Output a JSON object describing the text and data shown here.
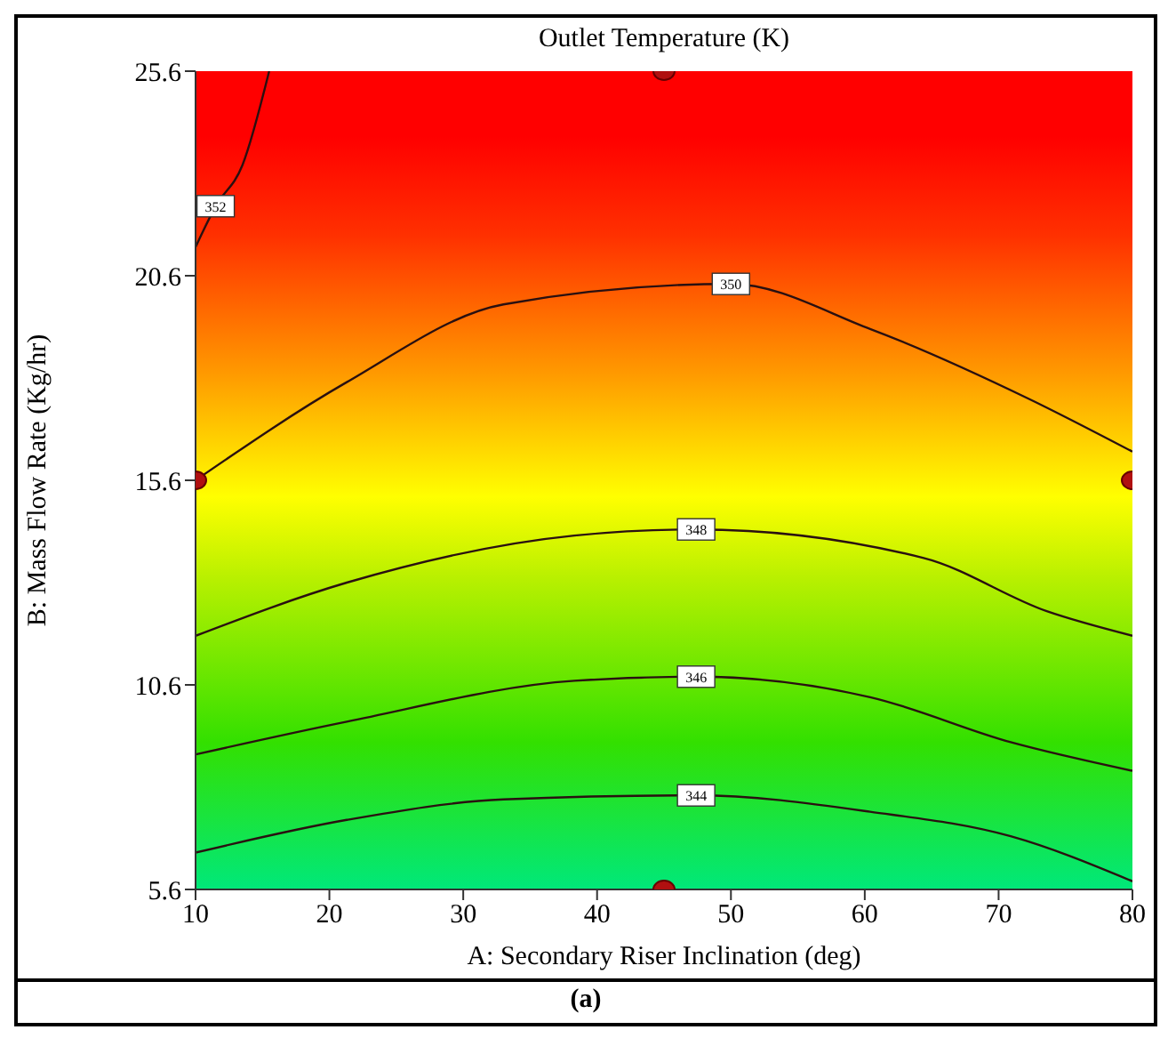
{
  "chart_data": {
    "type": "line",
    "title": "Outlet Temperature (K)",
    "xlabel": "A: Secondary Riser Inclination (deg)",
    "ylabel": "B: Mass Flow Rate (Kg/hr)",
    "xlim": [
      10,
      80
    ],
    "xticks": [
      10,
      20,
      30,
      40,
      50,
      60,
      70,
      80
    ],
    "ylim": [
      5.6,
      25.6
    ],
    "yticks": [
      5.6,
      10.6,
      15.6,
      20.6,
      25.6
    ],
    "marker": "none",
    "line_style": "solid",
    "annotations": [
      "(a)"
    ],
    "series": [
      {
        "name": "352",
        "color": "#2a1010",
        "x": [
          10,
          11.5,
          13.5,
          15.5
        ],
        "values": [
          21.3,
          22.3,
          23.3,
          25.6
        ]
      },
      {
        "name": "350",
        "color": "#2a1010",
        "x": [
          10,
          21.3,
          33,
          50,
          60.4,
          72.2,
          80
        ],
        "values": [
          15.6,
          18.0,
          19.9,
          20.4,
          19.3,
          17.6,
          16.3
        ]
      },
      {
        "name": "348",
        "color": "#2a1010",
        "x": [
          10,
          21.3,
          38.3,
          47.4,
          64.4,
          73.6,
          80
        ],
        "values": [
          11.8,
          13.1,
          14.25,
          14.4,
          13.7,
          12.4,
          11.8
        ]
      },
      {
        "name": "346",
        "color": "#2a1010",
        "x": [
          10,
          21.3,
          38.3,
          47.4,
          60.4,
          70.9,
          80
        ],
        "values": [
          8.9,
          9.7,
          10.7,
          10.8,
          10.3,
          9.2,
          8.5
        ]
      },
      {
        "name": "344",
        "color": "#2a1010",
        "x": [
          10,
          21.3,
          33,
          47.4,
          60.4,
          70.9,
          80
        ],
        "values": [
          6.5,
          7.3,
          7.8,
          7.9,
          7.5,
          6.9,
          5.8
        ]
      },
      {
        "type": "scatter",
        "color": "#b01010",
        "marker": "circle",
        "x": [
          45,
          10,
          80,
          45
        ],
        "values": [
          25.6,
          15.6,
          15.6,
          5.6
        ]
      }
    ]
  }
}
